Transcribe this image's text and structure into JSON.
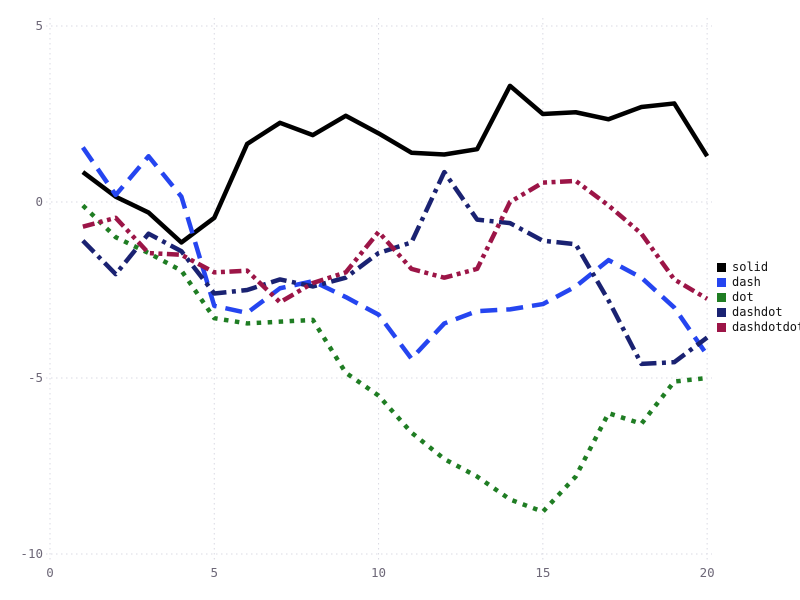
{
  "chart_data": {
    "type": "line",
    "title": "",
    "xlabel": "",
    "ylabel": "",
    "xlim": [
      0,
      20.6
    ],
    "ylim": [
      -10.45,
      5.6
    ],
    "x_ticks": [
      "0",
      "5",
      "10",
      "15",
      "20"
    ],
    "x_tick_values": [
      0,
      5,
      10,
      15,
      20
    ],
    "y_ticks": [
      "5",
      "0",
      "-5",
      "-10"
    ],
    "y_tick_values": [
      5,
      0,
      -5,
      -10
    ],
    "grid": "dotted",
    "legend_position": "right",
    "x": [
      1,
      2,
      3,
      4,
      5,
      6,
      7,
      8,
      9,
      10,
      11,
      12,
      13,
      14,
      15,
      16,
      17,
      18,
      19,
      20
    ],
    "series": [
      {
        "name": "solid",
        "line_style": "solid",
        "color": "#000000",
        "values": [
          0.85,
          0.15,
          -0.3,
          -1.15,
          -0.45,
          1.65,
          2.25,
          1.9,
          2.45,
          1.95,
          1.4,
          1.35,
          1.5,
          3.3,
          2.5,
          2.55,
          2.35,
          2.7,
          2.8,
          1.3
        ]
      },
      {
        "name": "dash",
        "line_style": "dash",
        "color": "#2545f0",
        "values": [
          1.55,
          0.2,
          1.3,
          0.15,
          -2.95,
          -3.15,
          -2.45,
          -2.25,
          -2.7,
          -3.2,
          -4.45,
          -3.45,
          -3.1,
          -3.05,
          -2.9,
          -2.4,
          -1.65,
          -2.15,
          -3.0,
          -4.35
        ]
      },
      {
        "name": "dot",
        "line_style": "dot",
        "color": "#1f7d23",
        "values": [
          -0.1,
          -1.0,
          -1.45,
          -1.95,
          -3.3,
          -3.45,
          -3.4,
          -3.35,
          -4.85,
          -5.5,
          -6.55,
          -7.3,
          -7.8,
          -8.45,
          -8.8,
          -7.8,
          -6.0,
          -6.3,
          -5.1,
          -5.0
        ]
      },
      {
        "name": "dashdot",
        "line_style": "dashdot",
        "color": "#1a2272",
        "values": [
          -1.1,
          -2.05,
          -0.9,
          -1.4,
          -2.6,
          -2.5,
          -2.2,
          -2.4,
          -2.15,
          -1.45,
          -1.15,
          0.85,
          -0.5,
          -0.6,
          -1.1,
          -1.2,
          -2.8,
          -4.6,
          -4.55,
          -3.85
        ]
      },
      {
        "name": "dashdotdot",
        "line_style": "dashdotdot",
        "color": "#9c1547",
        "values": [
          -0.7,
          -0.45,
          -1.45,
          -1.5,
          -2.0,
          -1.95,
          -2.85,
          -2.3,
          -2.0,
          -0.85,
          -1.9,
          -2.15,
          -1.9,
          0.0,
          0.55,
          0.6,
          -0.1,
          -0.9,
          -2.2,
          -2.75
        ]
      }
    ]
  },
  "colors": {
    "background": "#ffffff",
    "grid": "#d9d9e3",
    "tick_label": "#6e6878",
    "legend_text": "#111111"
  }
}
